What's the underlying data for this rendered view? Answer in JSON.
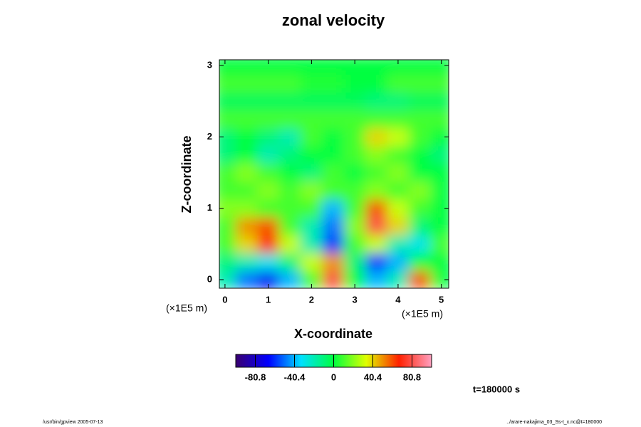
{
  "chart_data": {
    "type": "heatmap",
    "title": "zonal velocity",
    "x_label": "X-coordinate",
    "y_label": "Z-coordinate",
    "x_unit": "(×1E5 m)",
    "y_unit": "(×1E5 m)",
    "time_label": "t=180000 s",
    "footer_left": "/usr/bin/gpview 2005-07-13",
    "footer_right": "../arare-nakajima_03_Ss-t_x.nc@t=180000",
    "xlim": [
      -0.13,
      5.17
    ],
    "ylim": [
      -0.12,
      3.08
    ],
    "xticks": [
      0,
      1,
      2,
      3,
      4,
      5
    ],
    "yticks": [
      0,
      1,
      2,
      3
    ],
    "clim": [
      -101,
      101
    ],
    "cticks": [
      -80.8,
      -40.4,
      0,
      40.4,
      80.8
    ],
    "colormap": [
      "#3a0070",
      "#0000ff",
      "#00e0ff",
      "#00ff40",
      "#e0ff00",
      "#ff2000",
      "#ffa0c0"
    ],
    "x": [
      0,
      0.5,
      1,
      1.5,
      2,
      2.5,
      3,
      3.5,
      4,
      4.5,
      5
    ],
    "y": [
      0,
      0.25,
      0.5,
      0.75,
      1,
      1.25,
      1.5,
      1.75,
      2,
      2.25,
      2.5,
      2.75,
      3
    ],
    "z": [
      [
        -20,
        -50,
        -70,
        -40,
        10,
        80,
        0,
        -40,
        -20,
        60,
        0
      ],
      [
        -10,
        -20,
        -30,
        -10,
        30,
        50,
        -10,
        -60,
        -40,
        0,
        0
      ],
      [
        10,
        40,
        70,
        30,
        -20,
        -60,
        10,
        30,
        -20,
        -30,
        10
      ],
      [
        10,
        50,
        60,
        10,
        -20,
        -50,
        20,
        80,
        40,
        -10,
        0
      ],
      [
        20,
        20,
        10,
        10,
        10,
        -40,
        10,
        60,
        30,
        10,
        0
      ],
      [
        10,
        10,
        20,
        10,
        20,
        10,
        10,
        20,
        10,
        20,
        0
      ],
      [
        10,
        20,
        10,
        0,
        -10,
        10,
        0,
        10,
        20,
        0,
        0
      ],
      [
        -10,
        0,
        -20,
        -10,
        0,
        0,
        10,
        20,
        10,
        0,
        -10
      ],
      [
        -10,
        0,
        -10,
        -20,
        10,
        0,
        10,
        40,
        30,
        10,
        0
      ],
      [
        10,
        10,
        10,
        10,
        10,
        10,
        10,
        10,
        10,
        10,
        10
      ],
      [
        -5,
        -5,
        -5,
        -5,
        -5,
        -5,
        -5,
        -10,
        -10,
        -5,
        -5
      ],
      [
        10,
        10,
        10,
        10,
        5,
        5,
        0,
        0,
        10,
        10,
        10
      ],
      [
        0,
        0,
        0,
        0,
        0,
        0,
        0,
        0,
        0,
        0,
        0
      ]
    ]
  }
}
